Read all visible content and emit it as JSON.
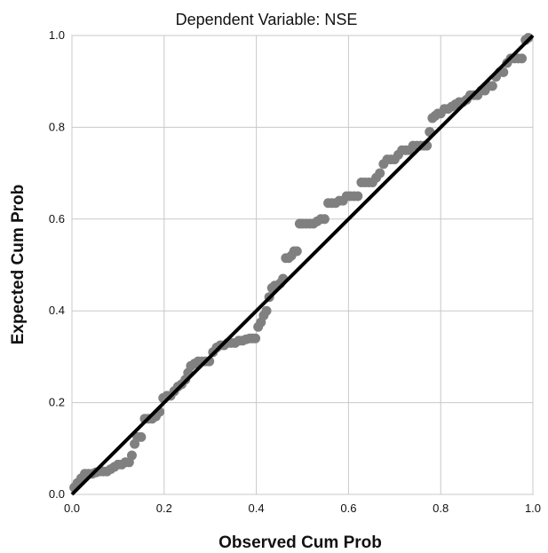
{
  "chart_data": {
    "type": "scatter",
    "title": "Dependent Variable: NSE",
    "xlabel": "Observed Cum Prob",
    "ylabel": "Expected Cum Prob",
    "xlim": [
      0,
      1
    ],
    "ylim": [
      0,
      1
    ],
    "grid": true,
    "xticks": [
      "0.0",
      "0.2",
      "0.4",
      "0.6",
      "0.8",
      "1.0"
    ],
    "yticks": [
      "0.0",
      "0.2",
      "0.4",
      "0.6",
      "0.8",
      "1.0"
    ],
    "reference_line": {
      "from": [
        0,
        0
      ],
      "to": [
        1,
        1
      ],
      "color": "#000000"
    },
    "point_color": "#808080",
    "x": [
      0.005,
      0.012,
      0.02,
      0.028,
      0.036,
      0.044,
      0.052,
      0.06,
      0.068,
      0.076,
      0.084,
      0.092,
      0.1,
      0.108,
      0.116,
      0.124,
      0.13,
      0.136,
      0.142,
      0.15,
      0.158,
      0.166,
      0.174,
      0.182,
      0.19,
      0.198,
      0.206,
      0.214,
      0.222,
      0.23,
      0.238,
      0.246,
      0.252,
      0.258,
      0.266,
      0.274,
      0.282,
      0.29,
      0.298,
      0.306,
      0.314,
      0.322,
      0.33,
      0.338,
      0.346,
      0.354,
      0.362,
      0.37,
      0.378,
      0.386,
      0.392,
      0.398,
      0.404,
      0.41,
      0.416,
      0.422,
      0.428,
      0.434,
      0.44,
      0.446,
      0.452,
      0.458,
      0.464,
      0.47,
      0.476,
      0.482,
      0.488,
      0.494,
      0.5,
      0.508,
      0.516,
      0.524,
      0.532,
      0.54,
      0.548,
      0.556,
      0.564,
      0.572,
      0.58,
      0.588,
      0.596,
      0.604,
      0.612,
      0.62,
      0.628,
      0.636,
      0.644,
      0.652,
      0.66,
      0.668,
      0.676,
      0.684,
      0.692,
      0.7,
      0.708,
      0.716,
      0.724,
      0.732,
      0.74,
      0.748,
      0.756,
      0.764,
      0.77,
      0.776,
      0.782,
      0.788,
      0.794,
      0.8,
      0.808,
      0.816,
      0.824,
      0.832,
      0.84,
      0.848,
      0.856,
      0.864,
      0.872,
      0.88,
      0.888,
      0.896,
      0.904,
      0.912,
      0.92,
      0.928,
      0.936,
      0.944,
      0.952,
      0.96,
      0.968,
      0.976,
      0.984,
      0.99
    ],
    "y": [
      0.015,
      0.025,
      0.035,
      0.045,
      0.045,
      0.045,
      0.048,
      0.05,
      0.05,
      0.05,
      0.055,
      0.06,
      0.065,
      0.065,
      0.07,
      0.07,
      0.085,
      0.11,
      0.125,
      0.125,
      0.165,
      0.165,
      0.165,
      0.17,
      0.18,
      0.21,
      0.215,
      0.215,
      0.225,
      0.235,
      0.24,
      0.25,
      0.265,
      0.28,
      0.285,
      0.29,
      0.29,
      0.29,
      0.29,
      0.31,
      0.32,
      0.325,
      0.325,
      0.33,
      0.33,
      0.33,
      0.335,
      0.335,
      0.338,
      0.34,
      0.34,
      0.34,
      0.365,
      0.375,
      0.39,
      0.4,
      0.43,
      0.45,
      0.455,
      0.455,
      0.46,
      0.47,
      0.515,
      0.515,
      0.52,
      0.53,
      0.53,
      0.59,
      0.59,
      0.59,
      0.59,
      0.59,
      0.595,
      0.6,
      0.6,
      0.635,
      0.635,
      0.635,
      0.64,
      0.64,
      0.65,
      0.65,
      0.65,
      0.65,
      0.68,
      0.68,
      0.68,
      0.68,
      0.69,
      0.7,
      0.72,
      0.73,
      0.73,
      0.73,
      0.74,
      0.75,
      0.75,
      0.75,
      0.76,
      0.76,
      0.76,
      0.76,
      0.76,
      0.79,
      0.82,
      0.825,
      0.83,
      0.83,
      0.84,
      0.84,
      0.845,
      0.85,
      0.855,
      0.855,
      0.86,
      0.87,
      0.87,
      0.87,
      0.88,
      0.88,
      0.89,
      0.89,
      0.91,
      0.92,
      0.92,
      0.94,
      0.95,
      0.95,
      0.95,
      0.95,
      0.99,
      0.995
    ]
  }
}
